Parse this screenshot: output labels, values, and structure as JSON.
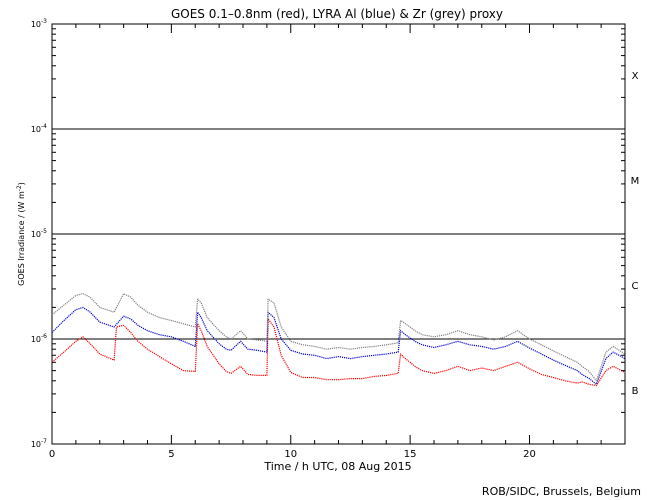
{
  "chart_data": {
    "type": "line",
    "title": "GOES 0.1–0.8nm (red), LYRA Al (blue) & Zr (grey) proxy",
    "xlabel": "Time / h UTC, 08 Aug 2015",
    "ylabel_main": "GOES Irradiance / (W m",
    "ylabel_sup": "-2",
    "ylabel_end": ")",
    "credit": "ROB/SIDC, Brussels, Belgium",
    "xlim": [
      0,
      24
    ],
    "ylim": [
      1e-07,
      0.001
    ],
    "yscale": "log",
    "x_ticks": [
      {
        "value": 0,
        "label": "0"
      },
      {
        "value": 5,
        "label": "5"
      },
      {
        "value": 10,
        "label": "10"
      },
      {
        "value": 15,
        "label": "15"
      },
      {
        "value": 20,
        "label": "20"
      }
    ],
    "y_ticks": [
      {
        "value": 1e-07,
        "base": "10",
        "exp": "-7"
      },
      {
        "value": 1e-06,
        "base": "10",
        "exp": "-6"
      },
      {
        "value": 1e-05,
        "base": "10",
        "exp": "-5"
      },
      {
        "value": 0.0001,
        "base": "10",
        "exp": "-4"
      },
      {
        "value": 0.001,
        "base": "10",
        "exp": "-3"
      }
    ],
    "flare_levels": [
      1e-06,
      1e-05,
      0.0001
    ],
    "flare_classes": [
      {
        "label": "X",
        "value": 0.00032
      },
      {
        "label": "M",
        "value": 3.2e-05
      },
      {
        "label": "C",
        "value": 3.2e-06
      },
      {
        "label": "B",
        "value": 3.2e-07
      }
    ],
    "series": [
      {
        "color": "#ff0000",
        "x": [
          0,
          0.5,
          1.0,
          1.3,
          1.6,
          2.0,
          2.6,
          2.7,
          3.0,
          3.3,
          3.6,
          4.0,
          4.5,
          5.0,
          5.5,
          6.0,
          6.1,
          6.25,
          6.5,
          7.0,
          7.3,
          7.5,
          7.9,
          8.2,
          8.6,
          9.0,
          9.05,
          9.3,
          9.6,
          10.0,
          10.5,
          11.0,
          11.5,
          12.0,
          12.5,
          13.0,
          13.5,
          14.0,
          14.5,
          14.6,
          14.8,
          15.2,
          15.5,
          16.0,
          16.5,
          17.0,
          17.5,
          18.0,
          18.5,
          19.0,
          19.5,
          20.0,
          20.5,
          21.0,
          21.5,
          22.0,
          22.2,
          22.5,
          22.8,
          23.2,
          23.5,
          24.0
        ],
        "y": [
          6e-07,
          7.5e-07,
          9.5e-07,
          1.05e-06,
          9e-07,
          7.2e-07,
          6.3e-07,
          1.3e-06,
          1.35e-06,
          1.15e-06,
          9.5e-07,
          8e-07,
          6.8e-07,
          5.8e-07,
          5e-07,
          4.9e-07,
          1.4e-06,
          1.2e-06,
          8.5e-07,
          5.8e-07,
          4.9e-07,
          4.7e-07,
          5.5e-07,
          4.6e-07,
          4.5e-07,
          4.5e-07,
          1.55e-06,
          1.3e-06,
          7e-07,
          4.8e-07,
          4.3e-07,
          4.3e-07,
          4.1e-07,
          4.1e-07,
          4.2e-07,
          4.2e-07,
          4.4e-07,
          4.5e-07,
          4.7e-07,
          7.2e-07,
          6.5e-07,
          5.5e-07,
          5e-07,
          4.7e-07,
          5e-07,
          5.5e-07,
          5e-07,
          5.3e-07,
          5e-07,
          5.5e-07,
          6e-07,
          5.2e-07,
          4.6e-07,
          4.3e-07,
          4e-07,
          3.8e-07,
          3.9e-07,
          3.7e-07,
          3.6e-07,
          5e-07,
          5.5e-07,
          4.8e-07
        ]
      },
      {
        "color": "#0000cc",
        "x": [
          0,
          0.5,
          1.0,
          1.3,
          1.6,
          2.0,
          2.6,
          3.0,
          3.3,
          3.6,
          4.0,
          4.5,
          5.0,
          5.5,
          6.0,
          6.1,
          6.25,
          6.5,
          7.0,
          7.3,
          7.5,
          7.9,
          8.2,
          8.6,
          9.0,
          9.05,
          9.3,
          9.6,
          10.0,
          10.5,
          11.0,
          11.5,
          12.0,
          12.5,
          13.0,
          13.5,
          14.0,
          14.5,
          14.6,
          14.8,
          15.2,
          15.5,
          16.0,
          16.5,
          17.0,
          17.5,
          18.0,
          18.5,
          19.0,
          19.5,
          20.0,
          20.5,
          21.0,
          21.5,
          22.0,
          22.2,
          22.5,
          22.8,
          23.2,
          23.5,
          24.0
        ],
        "y": [
          1.15e-06,
          1.5e-06,
          1.9e-06,
          2e-06,
          1.8e-06,
          1.45e-06,
          1.3e-06,
          1.65e-06,
          1.55e-06,
          1.35e-06,
          1.2e-06,
          1.1e-06,
          1.05e-06,
          9.5e-07,
          8.5e-07,
          1.8e-06,
          1.6e-06,
          1.2e-06,
          9e-07,
          8e-07,
          7.8e-07,
          9.5e-07,
          8e-07,
          7.8e-07,
          7.5e-07,
          1.8e-06,
          1.6e-06,
          1e-06,
          7.8e-07,
          7.2e-07,
          7e-07,
          6.5e-07,
          6.8e-07,
          6.5e-07,
          6.8e-07,
          7e-07,
          7.2e-07,
          7.5e-07,
          1.2e-06,
          1.1e-06,
          9.5e-07,
          8.8e-07,
          8.3e-07,
          8.8e-07,
          9.5e-07,
          8.8e-07,
          8.5e-07,
          8e-07,
          8.5e-07,
          9.5e-07,
          8.2e-07,
          7.2e-07,
          6.3e-07,
          5.6e-07,
          5e-07,
          4.6e-07,
          4.2e-07,
          3.7e-07,
          6.5e-07,
          7.5e-07,
          6.5e-07
        ]
      },
      {
        "color": "#808080",
        "x": [
          0,
          0.5,
          1.0,
          1.3,
          1.6,
          2.0,
          2.6,
          3.0,
          3.3,
          3.6,
          4.0,
          4.5,
          5.0,
          5.5,
          6.0,
          6.1,
          6.25,
          6.5,
          7.0,
          7.3,
          7.5,
          7.9,
          8.2,
          8.6,
          9.0,
          9.05,
          9.3,
          9.6,
          10.0,
          10.5,
          11.0,
          11.5,
          12.0,
          12.5,
          13.0,
          13.5,
          14.0,
          14.5,
          14.6,
          14.8,
          15.2,
          15.5,
          16.0,
          16.5,
          17.0,
          17.5,
          18.0,
          18.5,
          19.0,
          19.5,
          20.0,
          20.5,
          21.0,
          21.5,
          22.0,
          22.2,
          22.5,
          22.8,
          23.2,
          23.5,
          24.0
        ],
        "y": [
          1.7e-06,
          2.1e-06,
          2.6e-06,
          2.7e-06,
          2.5e-06,
          2e-06,
          1.8e-06,
          2.7e-06,
          2.5e-06,
          2.1e-06,
          1.8e-06,
          1.6e-06,
          1.5e-06,
          1.4e-06,
          1.3e-06,
          2.4e-06,
          2.2e-06,
          1.6e-06,
          1.2e-06,
          1.05e-06,
          1e-06,
          1.2e-06,
          1e-06,
          9.8e-07,
          9.5e-07,
          2.4e-06,
          2.2e-06,
          1.3e-06,
          9.5e-07,
          8.8e-07,
          8.5e-07,
          8e-07,
          8.3e-07,
          8e-07,
          8.3e-07,
          8.5e-07,
          8.8e-07,
          9.2e-07,
          1.5e-06,
          1.4e-06,
          1.2e-06,
          1.1e-06,
          1.05e-06,
          1.1e-06,
          1.2e-06,
          1.1e-06,
          1.05e-06,
          9.8e-07,
          1.05e-06,
          1.2e-06,
          1e-06,
          8.8e-07,
          7.7e-07,
          6.8e-07,
          6e-07,
          5.5e-07,
          4.9e-07,
          4e-07,
          7.5e-07,
          8.5e-07,
          7.2e-07
        ]
      }
    ]
  }
}
